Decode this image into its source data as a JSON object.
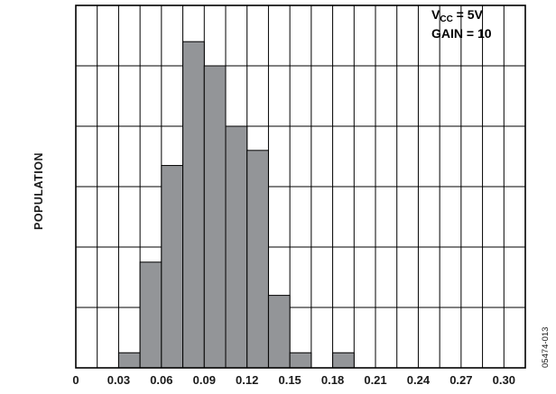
{
  "chart_data": {
    "type": "bar",
    "histogram": true,
    "title": "",
    "xlabel": "",
    "ylabel": "POPULATION",
    "x_tick_labels": [
      "0",
      "0.03",
      "0.06",
      "0.09",
      "0.12",
      "0.15",
      "0.18",
      "0.21",
      "0.24",
      "0.27",
      "0.30"
    ],
    "bin_width": 0.015,
    "bins": [
      {
        "start": 0.0,
        "end": 0.015,
        "value": 0
      },
      {
        "start": 0.015,
        "end": 0.03,
        "value": 0
      },
      {
        "start": 0.03,
        "end": 0.045,
        "value": 0.25
      },
      {
        "start": 0.045,
        "end": 0.06,
        "value": 1.75
      },
      {
        "start": 0.06,
        "end": 0.075,
        "value": 3.35
      },
      {
        "start": 0.075,
        "end": 0.09,
        "value": 5.4
      },
      {
        "start": 0.09,
        "end": 0.105,
        "value": 5.0
      },
      {
        "start": 0.105,
        "end": 0.12,
        "value": 4.0
      },
      {
        "start": 0.12,
        "end": 0.135,
        "value": 3.6
      },
      {
        "start": 0.135,
        "end": 0.15,
        "value": 1.2
      },
      {
        "start": 0.15,
        "end": 0.165,
        "value": 0.25
      },
      {
        "start": 0.165,
        "end": 0.18,
        "value": 0
      },
      {
        "start": 0.18,
        "end": 0.195,
        "value": 0.25
      },
      {
        "start": 0.195,
        "end": 0.21,
        "value": 0
      },
      {
        "start": 0.21,
        "end": 0.225,
        "value": 0
      },
      {
        "start": 0.225,
        "end": 0.24,
        "value": 0
      },
      {
        "start": 0.24,
        "end": 0.255,
        "value": 0
      },
      {
        "start": 0.255,
        "end": 0.27,
        "value": 0
      },
      {
        "start": 0.27,
        "end": 0.285,
        "value": 0
      },
      {
        "start": 0.285,
        "end": 0.3,
        "value": 0
      },
      {
        "start": 0.3,
        "end": 0.315,
        "value": 0
      }
    ],
    "xlim": [
      0,
      0.315
    ],
    "ylim": [
      0,
      6
    ],
    "y_tick_labels": [],
    "grid": true,
    "annotation": {
      "line1_main": "V",
      "line1_sub": "CC",
      "line1_rest": " = 5V",
      "line2": "GAIN = 10"
    },
    "figure_id": "05474-013",
    "colors": {
      "bar_fill": "#939598",
      "bar_stroke": "#000000",
      "grid": "#000000",
      "frame": "#000000",
      "background": "#ffffff"
    }
  }
}
